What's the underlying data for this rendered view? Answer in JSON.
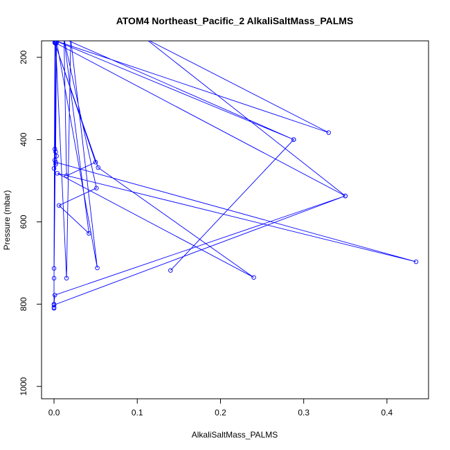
{
  "chart_data": {
    "type": "line",
    "title": "ATOM4 Northeast_Pacific_2 AlkaliSaltMass_PALMS",
    "xlabel": "AlkaliSaltMass_PALMS",
    "ylabel": "Pressure (mbar)",
    "xlim": [
      -0.015,
      0.45
    ],
    "ylim": [
      1030,
      160
    ],
    "y_inverted": true,
    "x_ticks": [
      0.0,
      0.1,
      0.2,
      0.3,
      0.4
    ],
    "x_tick_labels": [
      "0.0",
      "0.1",
      "0.2",
      "0.3",
      "0.4"
    ],
    "y_ticks": [
      200,
      400,
      600,
      800,
      1000
    ],
    "y_tick_labels": [
      "200",
      "400",
      "600",
      "800",
      "1000"
    ],
    "series": [
      {
        "color": "#0000ff",
        "marker": "open-circle",
        "points": [
          [
            0.0,
            810
          ],
          [
            0.0,
            808
          ],
          [
            0.0,
            800
          ],
          [
            0.001,
            778
          ],
          [
            0.35,
            537
          ],
          [
            0.0,
            802
          ],
          [
            0.0,
            737
          ],
          [
            0.003,
            165
          ],
          [
            0.001,
            163
          ],
          [
            0.0,
            713
          ],
          [
            0.002,
            166
          ],
          [
            0.015,
            737
          ],
          [
            0.02,
            155
          ],
          [
            0.052,
            712
          ],
          [
            0.003,
            160
          ],
          [
            0.002,
            430
          ],
          [
            0.001,
            423
          ],
          [
            0.003,
            440
          ],
          [
            0.001,
            450
          ],
          [
            0.002,
            460
          ],
          [
            0.0,
            470
          ],
          [
            0.002,
            455
          ],
          [
            0.435,
            697
          ],
          [
            0.004,
            482
          ],
          [
            0.24,
            735
          ],
          [
            0.053,
            468
          ],
          [
            0.001,
            165
          ],
          [
            0.05,
            455
          ],
          [
            0.015,
            488
          ],
          [
            0.012,
            155
          ],
          [
            0.051,
            518
          ],
          [
            0.006,
            560
          ],
          [
            0.042,
            628
          ],
          [
            0.012,
            155
          ],
          [
            0.288,
            400
          ],
          [
            0.14,
            718
          ],
          [
            0.288,
            400
          ],
          [
            0.002,
            160
          ],
          [
            0.33,
            383
          ],
          [
            0.11,
            155
          ],
          [
            0.35,
            537
          ],
          [
            0.002,
            165
          ]
        ]
      }
    ]
  }
}
